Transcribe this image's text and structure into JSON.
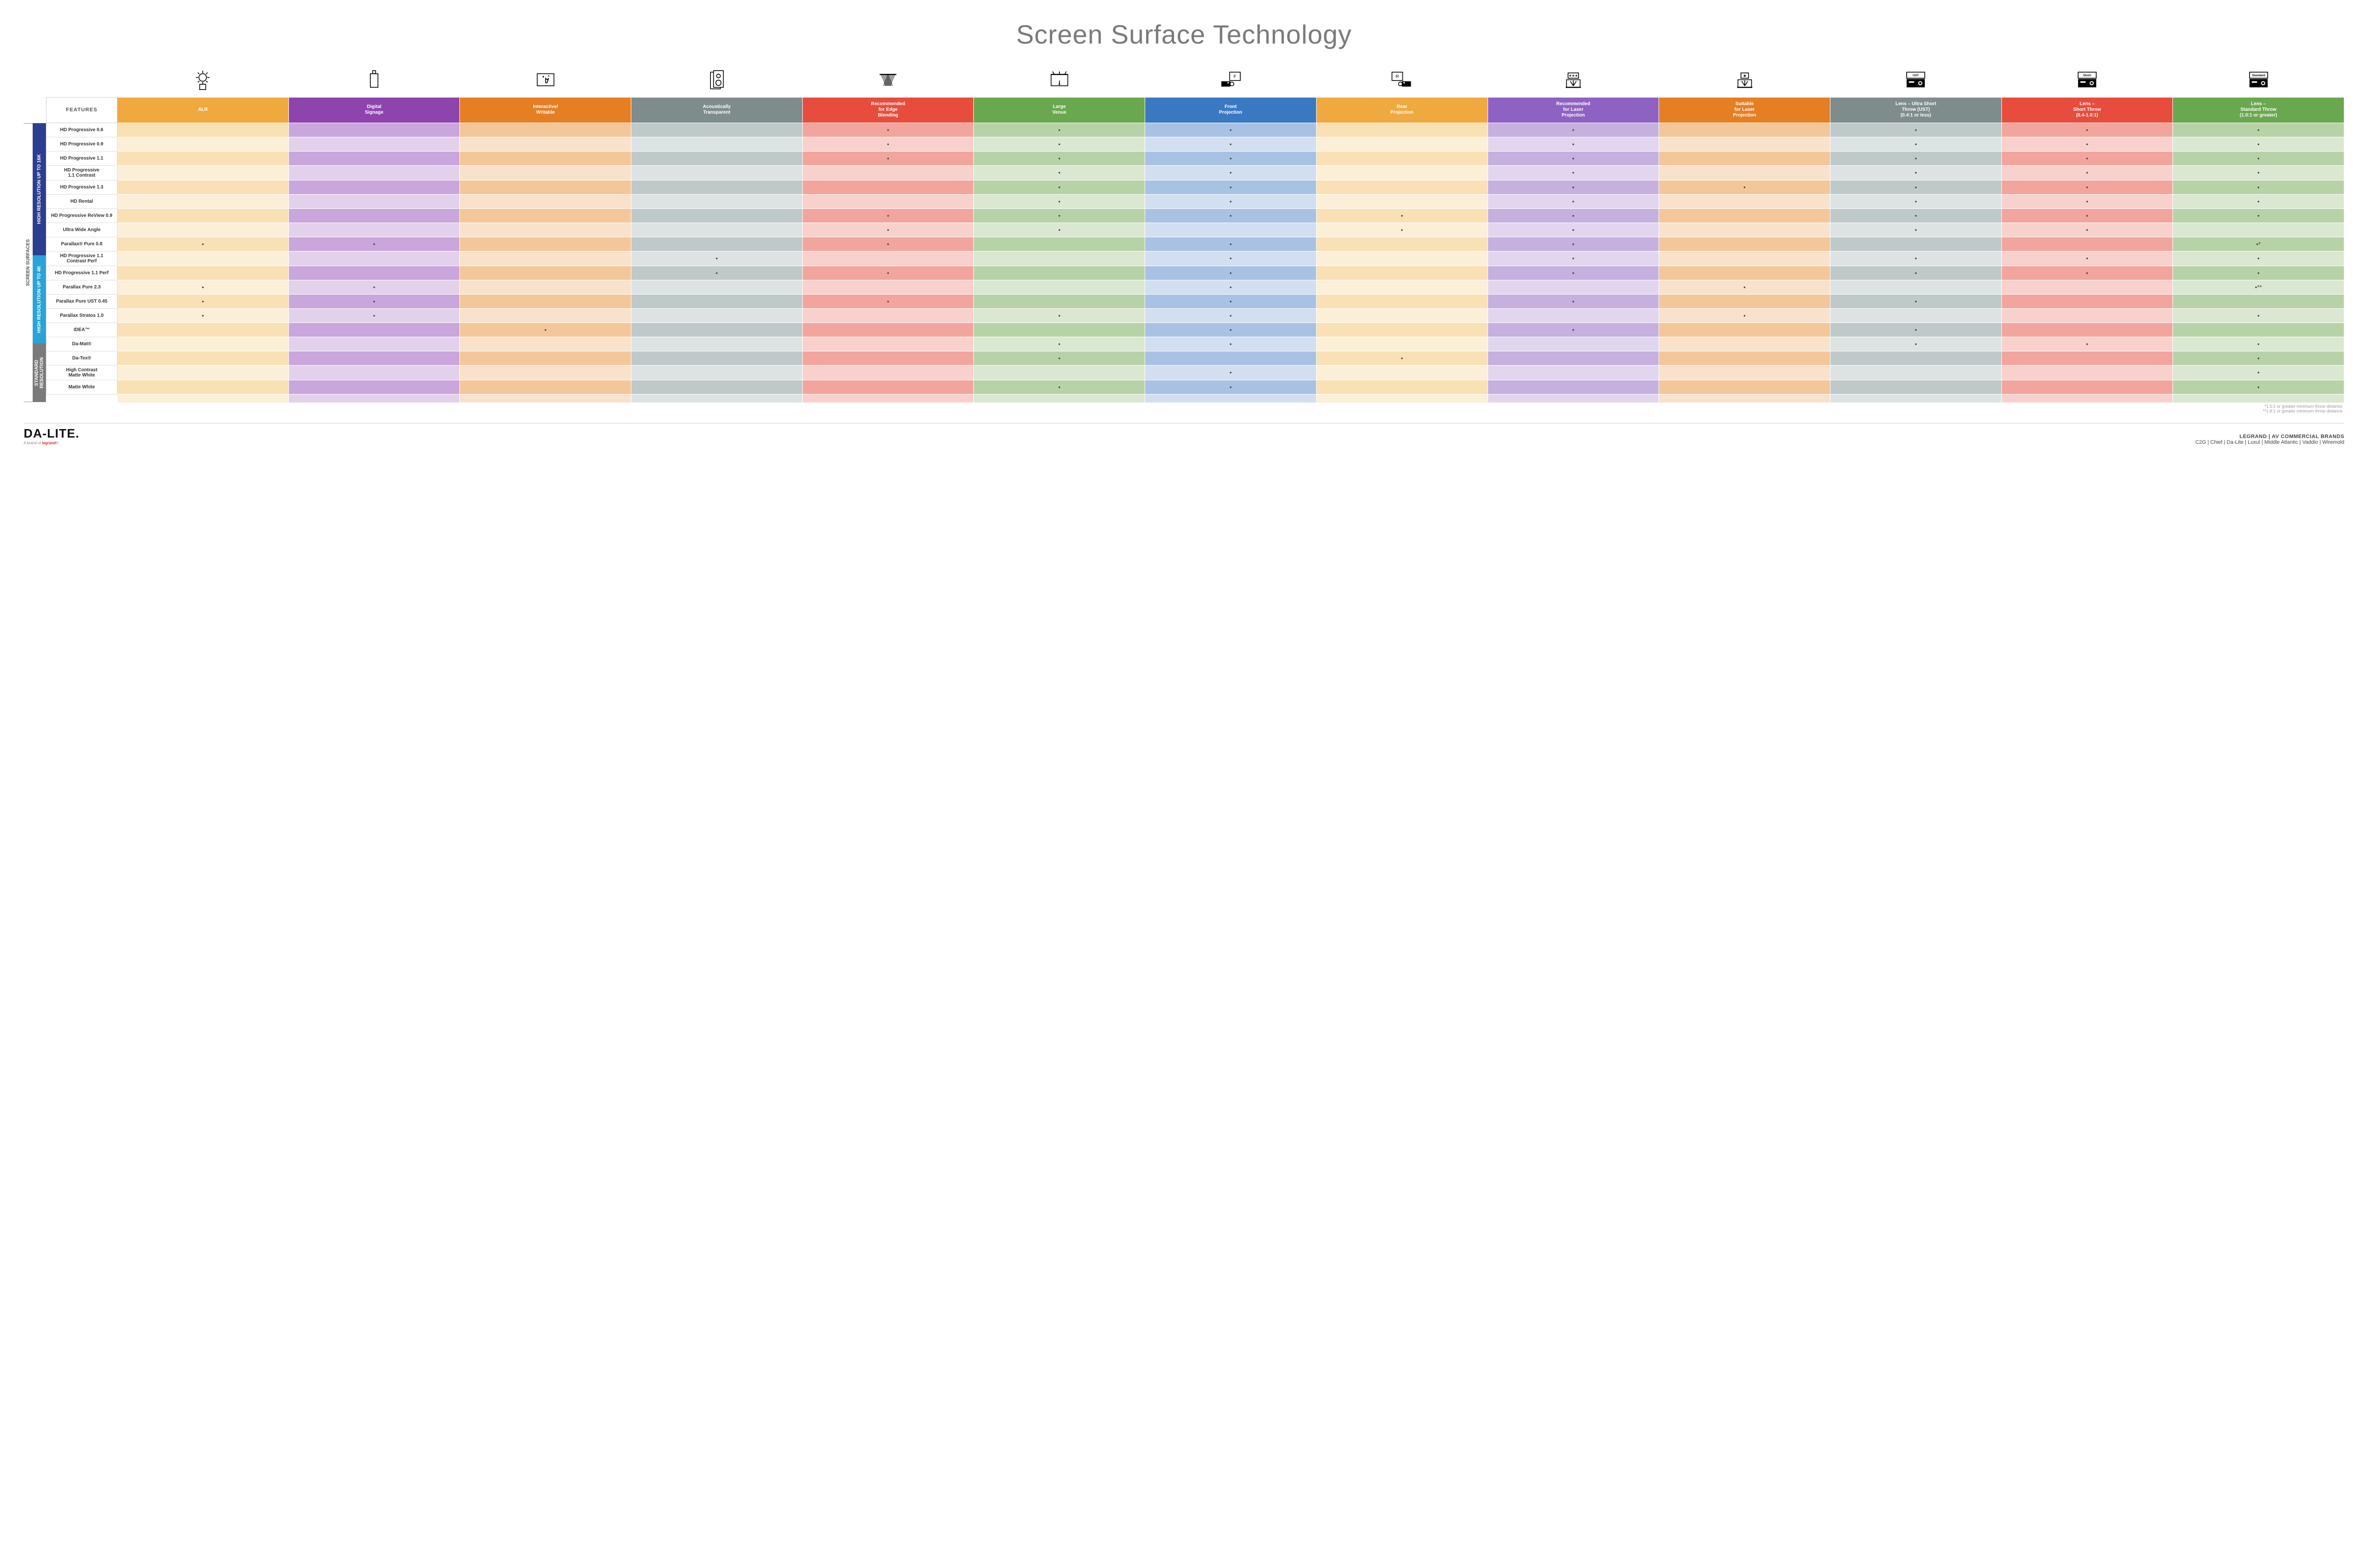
{
  "title": "Screen Surface Technology",
  "features_header": "FEATURES",
  "side_label": "SCREEN SURFACES",
  "columns": [
    {
      "key": "alr",
      "label": "ALR",
      "color": "#f0a93e",
      "light": "#f9e0b5",
      "lighter": "#fcefd8"
    },
    {
      "key": "signage",
      "label": "Digital\nSignage",
      "color": "#8e44ad",
      "light": "#c9a6db",
      "lighter": "#e3d1ec"
    },
    {
      "key": "interactive",
      "label": "Interactive/\nWritable",
      "color": "#e67e22",
      "light": "#f3c79a",
      "lighter": "#f9e2cb"
    },
    {
      "key": "acoustic",
      "label": "Acoustically\nTransparent",
      "color": "#7f8c8d",
      "light": "#bfc9c9",
      "lighter": "#dde3e3"
    },
    {
      "key": "edge",
      "label": "Recommended\nfor Edge\nBlending",
      "color": "#e74c3c",
      "light": "#f1a59c",
      "lighter": "#f8d1cc"
    },
    {
      "key": "large",
      "label": "Large\nVenue",
      "color": "#6aa84f",
      "light": "#b8d2a8",
      "lighter": "#dae8d2"
    },
    {
      "key": "front",
      "label": "Front\nProjection",
      "color": "#3b78c2",
      "light": "#a8c2e3",
      "lighter": "#d2dff0"
    },
    {
      "key": "rear",
      "label": "Rear\nProjection",
      "color": "#f0a93e",
      "light": "#f9e0b5",
      "lighter": "#fcefd8"
    },
    {
      "key": "reclaser",
      "label": "Recommended\nfor Laser\nProjection",
      "color": "#8e62c2",
      "light": "#c5b0de",
      "lighter": "#e1d6ee"
    },
    {
      "key": "suitlaser",
      "label": "Suitable\nfor Laser\nProjection",
      "color": "#e67e22",
      "light": "#f3c79a",
      "lighter": "#f9e2cb"
    },
    {
      "key": "ust",
      "label": "Lens – Ultra Short\nThrow (UST)\n(0.4:1 or less)",
      "color": "#7f8c8d",
      "light": "#bfc9c9",
      "lighter": "#dde3e3"
    },
    {
      "key": "short",
      "label": "Lens –\nShort Throw\n(0.4-1.0:1)",
      "color": "#e74c3c",
      "light": "#f1a59c",
      "lighter": "#f8d1cc"
    },
    {
      "key": "std",
      "label": "Lens –\nStandard Throw\n(1.0:1 or greater)",
      "color": "#6aa84f",
      "light": "#b8d2a8",
      "lighter": "#dae8d2"
    }
  ],
  "groups": [
    {
      "label": "HIGH RESOLUTION UP TO 16K",
      "color": "#2c3e8f",
      "rows": 9
    },
    {
      "label": "HIGH RESOLUTION UP TO 4K",
      "color": "#2aa3d6",
      "rows": 6
    },
    {
      "label": "STANDARD\nRESOLUTION",
      "color": "#7a7a7a",
      "rows": 4
    }
  ],
  "rows": [
    {
      "label": "HD Progressive 0.6",
      "dots": {
        "edge": "•",
        "large": "•",
        "front": "•",
        "reclaser": "•",
        "ust": "•",
        "short": "•",
        "std": "•"
      }
    },
    {
      "label": "HD Progressive 0.9",
      "dots": {
        "edge": "•",
        "large": "•",
        "front": "•",
        "reclaser": "•",
        "ust": "•",
        "short": "•",
        "std": "•"
      }
    },
    {
      "label": "HD Progressive 1.1",
      "dots": {
        "edge": "•",
        "large": "•",
        "front": "•",
        "reclaser": "•",
        "ust": "•",
        "short": "•",
        "std": "•"
      }
    },
    {
      "label": "HD Progressive\n1.1 Contrast",
      "dots": {
        "large": "•",
        "front": "•",
        "reclaser": "•",
        "ust": "•",
        "short": "•",
        "std": "•"
      }
    },
    {
      "label": "HD Progressive 1.3",
      "dots": {
        "large": "•",
        "front": "•",
        "reclaser": "•",
        "suitlaser": "•",
        "ust": "•",
        "short": "•",
        "std": "•"
      }
    },
    {
      "label": "HD Rental",
      "dots": {
        "large": "•",
        "front": "•",
        "reclaser": "•",
        "ust": "•",
        "short": "•",
        "std": "•"
      }
    },
    {
      "label": "HD Progressive ReView 0.9",
      "dots": {
        "edge": "•",
        "large": "•",
        "front": "•",
        "rear": "•",
        "reclaser": "•",
        "ust": "•",
        "short": "•",
        "std": "•"
      }
    },
    {
      "label": "Ultra Wide Angle",
      "dots": {
        "edge": "•",
        "large": "•",
        "rear": "•",
        "reclaser": "•",
        "ust": "•",
        "short": "•"
      }
    },
    {
      "label": "Parallax® Pure 0.8",
      "dots": {
        "alr": "•",
        "signage": "•",
        "edge": "•",
        "front": "•",
        "reclaser": "•",
        "std": "•*"
      }
    },
    {
      "label": "HD Progressive 1.1\nContrast Perf",
      "dots": {
        "acoustic": "•",
        "front": "•",
        "reclaser": "•",
        "ust": "•",
        "short": "•",
        "std": "•"
      }
    },
    {
      "label": "HD Progressive 1.1 Perf",
      "dots": {
        "acoustic": "•",
        "edge": "•",
        "front": "•",
        "reclaser": "•",
        "ust": "•",
        "short": "•",
        "std": "•"
      }
    },
    {
      "label": "Parallax Pure 2.3",
      "dots": {
        "alr": "•",
        "signage": "•",
        "front": "•",
        "suitlaser": "•",
        "std": "•**"
      }
    },
    {
      "label": "Parallax Pure UST 0.45",
      "dots": {
        "alr": "•",
        "signage": "•",
        "edge": "•",
        "front": "•",
        "reclaser": "•",
        "ust": "•"
      }
    },
    {
      "label": "Parallax Stratos 1.0",
      "dots": {
        "alr": "•",
        "signage": "•",
        "large": "•",
        "front": "•",
        "suitlaser": "•",
        "std": "•"
      }
    },
    {
      "label": "IDEA™",
      "dots": {
        "interactive": "•",
        "front": "•",
        "reclaser": "•",
        "ust": "•"
      }
    },
    {
      "label": "Da-Mat®",
      "dots": {
        "large": "•",
        "front": "•",
        "ust": "•",
        "short": "•",
        "std": "•"
      }
    },
    {
      "label": "Da-Tex®",
      "dots": {
        "large": "•",
        "rear": "•",
        "std": "•"
      }
    },
    {
      "label": "High Contrast\nMatte White",
      "dots": {
        "front": "•",
        "std": "•"
      }
    },
    {
      "label": "Matte White",
      "dots": {
        "large": "•",
        "front": "•",
        "std": "•"
      }
    }
  ],
  "footnotes": [
    "*1.5:1 or greater minimum throw distance",
    "**1.8:1 or greater minimum throw distance"
  ],
  "footer": {
    "logo": "DA-LITE.",
    "logo_sub_prefix": "A brand of ",
    "logo_sub_brand": "legrand",
    "brands_top": "LEGRAND | AV COMMERCIAL BRANDS",
    "brands_list": "C2G  |  Chief  |  Da-Lite  |  Luxul  |  Middle Atlantic  |  Vaddio  |  Wiremold"
  },
  "icons": {
    "proj_ust": "UST",
    "proj_short": "Short",
    "proj_std": "Standard"
  }
}
